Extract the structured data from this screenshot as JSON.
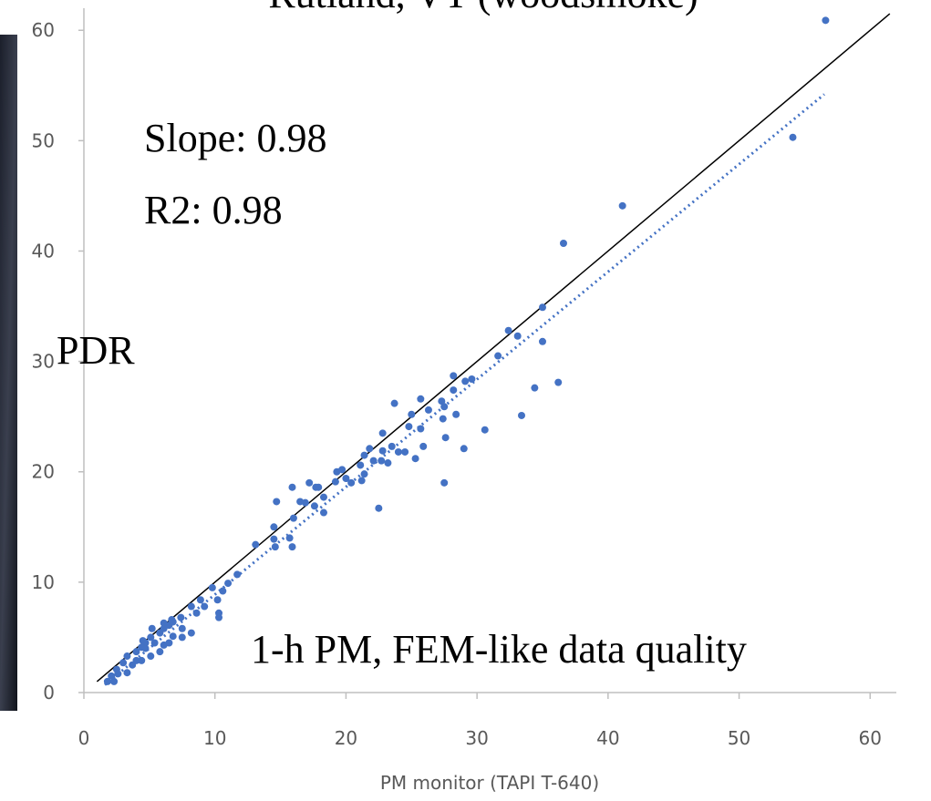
{
  "chart_data": {
    "type": "scatter",
    "title": "Rutland, VT (woodsmoke)",
    "x_label": "PM monitor (TAPI T-640)",
    "y_label": "PDR",
    "annotations": [
      "Slope: 0.98",
      "R2: 0.98",
      "1-h PM, FEM-like data quality"
    ],
    "color": "#4472c4",
    "x": [
      56.6,
      54.1,
      41.1,
      36.6,
      35.0,
      32.4,
      33.1,
      35.0,
      31.6,
      36.2,
      34.4,
      33.4,
      30.6,
      29.0,
      27.5,
      22.5,
      28.2,
      29.6,
      29.1,
      28.2,
      27.3,
      25.7,
      23.7,
      27.5,
      26.3,
      25.0,
      27.4,
      25.7,
      24.8,
      28.4,
      27.6,
      25.9,
      25.3,
      23.5,
      22.8,
      24.0,
      24.5,
      22.8,
      21.8,
      21.4,
      22.1,
      21.1,
      22.7,
      23.2,
      21.4,
      21.2,
      20.0,
      20.4,
      19.2,
      19.3,
      19.7,
      17.9,
      18.3,
      17.2,
      17.7,
      15.9,
      14.7,
      16.5,
      16.9,
      17.6,
      18.3,
      16.0,
      14.5,
      14.5,
      15.7,
      14.6,
      15.9,
      13.1,
      11.7,
      11.0,
      10.6,
      9.8,
      10.2,
      8.9,
      9.2,
      8.2,
      8.6,
      10.3,
      10.3,
      7.4,
      6.8,
      6.5,
      6.1,
      7.5,
      5.8,
      5.1,
      4.7,
      4.4,
      4.0,
      3.3,
      3.0,
      2.5,
      2.1,
      5.1,
      5.8,
      6.5,
      7.5,
      8.2,
      4.4,
      3.7,
      6.8,
      5.4,
      4.7,
      6.1,
      4.0,
      2.6,
      1.8,
      2.3,
      3.3,
      4.5,
      5.2,
      6.1,
      6.7
    ],
    "y": [
      60.9,
      50.3,
      44.1,
      40.7,
      34.9,
      32.8,
      32.3,
      31.8,
      30.5,
      28.1,
      27.6,
      25.1,
      23.8,
      22.1,
      19.0,
      16.7,
      28.7,
      28.4,
      28.2,
      27.4,
      26.4,
      26.6,
      26.2,
      25.9,
      25.6,
      25.2,
      24.8,
      23.9,
      24.1,
      25.2,
      23.1,
      22.3,
      21.2,
      22.3,
      21.9,
      21.8,
      21.8,
      23.5,
      22.1,
      21.5,
      21.0,
      20.6,
      21.0,
      20.8,
      19.8,
      19.2,
      19.4,
      19.0,
      19.1,
      20.0,
      20.2,
      18.6,
      17.7,
      19.0,
      18.6,
      18.6,
      17.3,
      17.3,
      17.2,
      16.9,
      16.3,
      15.8,
      15.0,
      13.9,
      14.0,
      13.2,
      13.2,
      13.4,
      10.7,
      9.9,
      9.2,
      9.5,
      8.4,
      8.4,
      7.8,
      7.8,
      7.2,
      7.2,
      6.8,
      6.8,
      6.4,
      6.1,
      5.8,
      5.8,
      5.4,
      5.0,
      4.5,
      4.1,
      3.7,
      3.3,
      2.7,
      2.1,
      1.5,
      3.3,
      3.7,
      4.5,
      5.0,
      5.4,
      2.9,
      2.5,
      5.1,
      4.5,
      4.0,
      4.3,
      2.9,
      1.7,
      1.0,
      1.0,
      1.8,
      4.7,
      5.8,
      6.3,
      6.6
    ],
    "reference_line": {
      "x": [
        1,
        61.5
      ],
      "y": [
        1,
        61.5
      ],
      "color": "#000000"
    },
    "trendline": {
      "x": [
        1.6,
        56.5
      ],
      "y": [
        0.7,
        54.2
      ],
      "color": "#4472c4"
    },
    "xlim": [
      0,
      62
    ],
    "ylim": [
      0,
      62
    ],
    "xticks": [
      0,
      10,
      20,
      30,
      40,
      50,
      60
    ],
    "yticks": [
      0,
      10,
      20,
      30,
      40,
      50,
      60
    ]
  }
}
